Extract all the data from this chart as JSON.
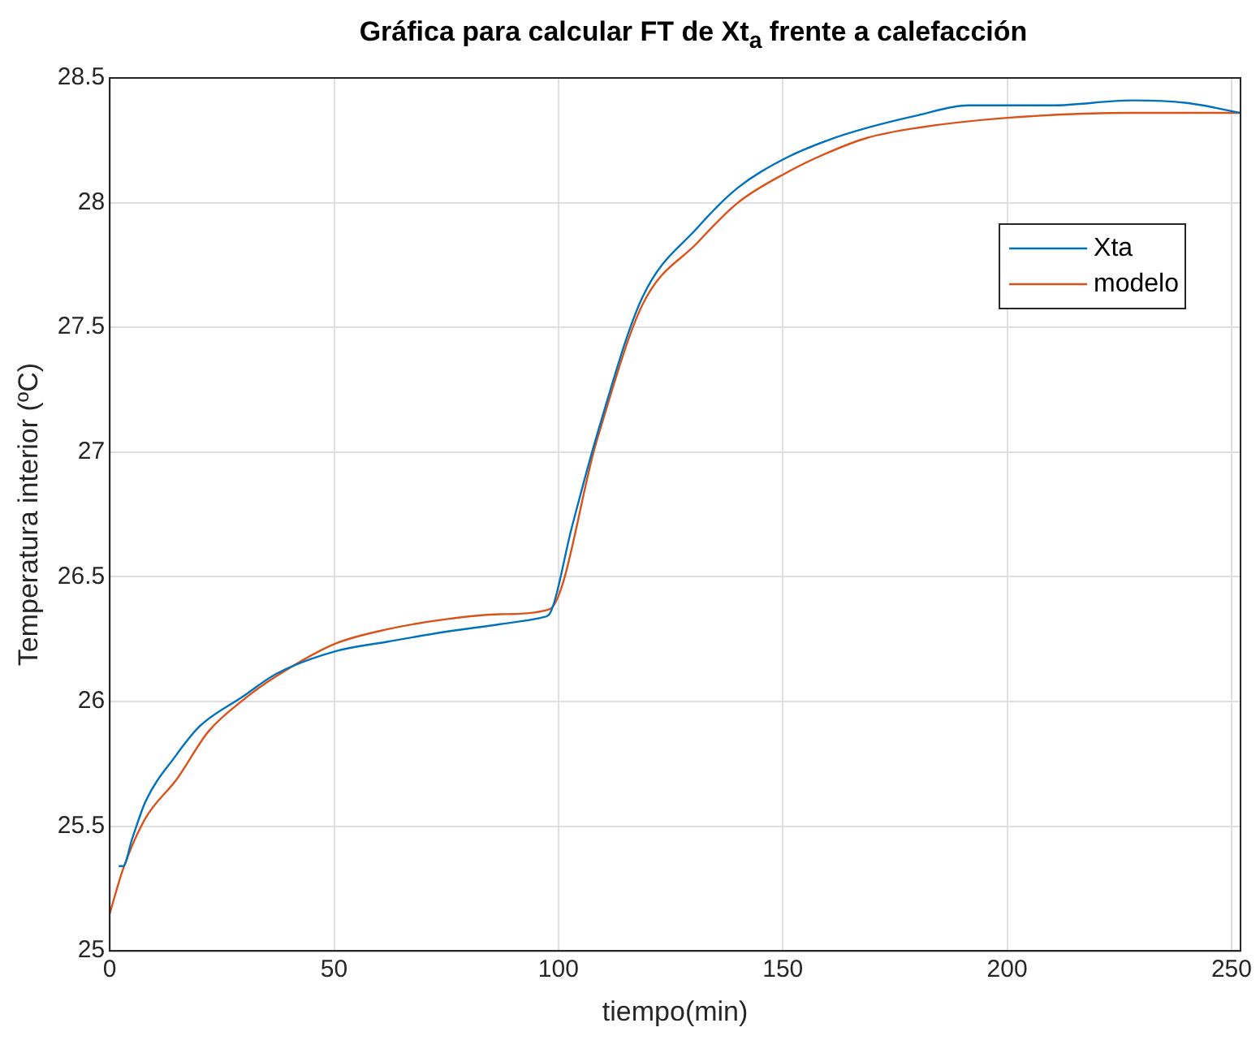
{
  "chart_data": {
    "type": "line",
    "title": "Gráfica para calcular FT de Xt$_{a}$ frente a calefacción",
    "xlabel": "tiempo(min)",
    "ylabel": "Temperatura interior (ºC)",
    "xlim": [
      0,
      252
    ],
    "xticks": [
      0,
      50,
      100,
      150,
      200,
      250
    ],
    "ylim": [
      25,
      28.5
    ],
    "yticks": [
      25,
      25.5,
      26,
      26.5,
      27,
      27.5,
      28,
      28.5
    ],
    "grid": true,
    "legend": "top right",
    "line_style": "solid",
    "marker": "none",
    "series": [
      {
        "name": "Xta",
        "color": "#0072bd",
        "x": [
          2,
          3,
          5,
          8,
          14.6,
          20,
          29.7,
          37,
          50,
          62,
          75,
          87,
          97,
          98,
          103,
          108.6,
          118.7,
          131,
          140,
          150.8,
          160,
          168.8,
          180,
          191.4,
          200.8,
          210,
          227.8,
          240,
          252
        ],
        "values": [
          25.34,
          25.34,
          25.45,
          25.6,
          25.78,
          25.9,
          26.02,
          26.11,
          26.2,
          26.24,
          26.28,
          26.31,
          26.34,
          26.35,
          26.7,
          27.07,
          27.62,
          27.9,
          28.06,
          28.18,
          28.25,
          28.3,
          28.35,
          28.39,
          28.39,
          28.39,
          28.41,
          28.4,
          28.36
        ]
      },
      {
        "name": "modelo",
        "color": "#d95319",
        "x": [
          0,
          3,
          7.9,
          15,
          22,
          30,
          37,
          50,
          62,
          75,
          87,
          98,
          108.6,
          118.7,
          131,
          140,
          150.8,
          160,
          168.8,
          180,
          200,
          228,
          252
        ],
        "values": [
          25.15,
          25.33,
          25.53,
          25.69,
          25.88,
          26.01,
          26.1,
          26.23,
          26.29,
          26.33,
          26.35,
          26.37,
          27.05,
          27.59,
          27.84,
          28.0,
          28.12,
          28.2,
          28.26,
          28.3,
          28.34,
          28.36,
          28.36
        ]
      }
    ]
  }
}
